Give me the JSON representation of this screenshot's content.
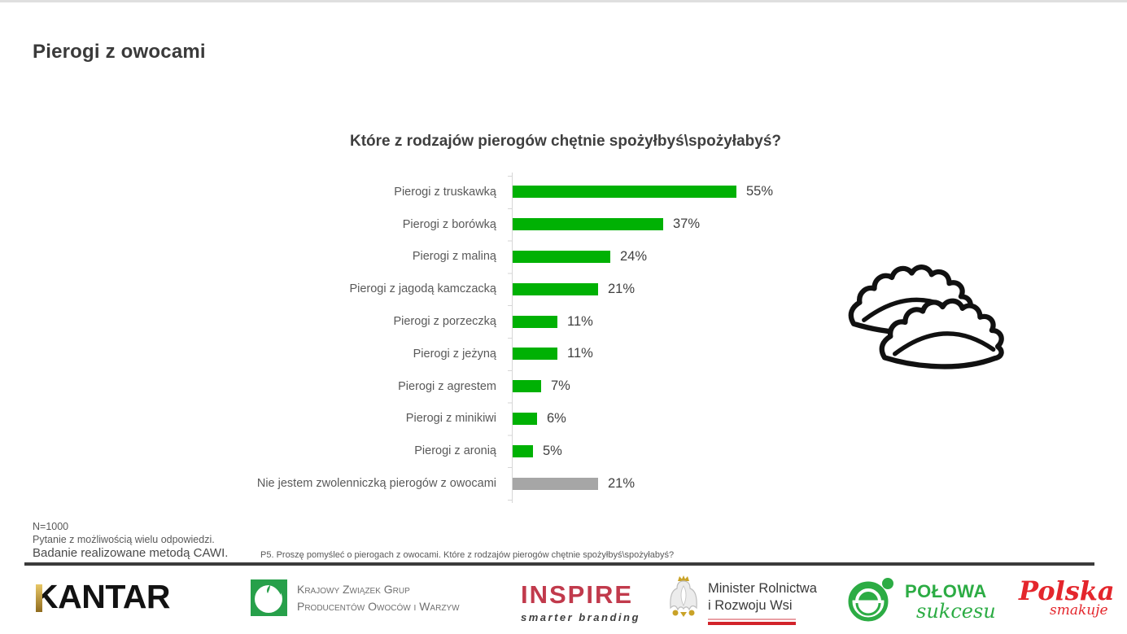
{
  "slide": {
    "title": "Pierogi z owocami"
  },
  "chart_data": {
    "type": "bar",
    "orientation": "horizontal",
    "title": "Które z rodzajów pierogów chętnie spożyłbyś\\spożyłabyś?",
    "categories": [
      "Pierogi z truskawką",
      "Pierogi z borówką",
      "Pierogi z maliną",
      "Pierogi z jagodą kamczacką",
      "Pierogi z porzeczką",
      "Pierogi z jeżyną",
      "Pierogi z agrestem",
      "Pierogi z minikiwi",
      "Pierogi z aronią",
      "Nie jestem zwolenniczką pierogów z owocami"
    ],
    "values": [
      55,
      37,
      24,
      21,
      11,
      11,
      7,
      6,
      5,
      21
    ],
    "value_suffix": "%",
    "bar_color": "#00B104",
    "muted_bar_color": "#A6A6A6",
    "muted_indices": [
      9
    ],
    "xlim": [
      0,
      60
    ],
    "grid": false,
    "legend": "none"
  },
  "notes": {
    "sample": "N=1000",
    "multi": "Pytanie z możliwością wielu odpowiedzi.",
    "method": "Badanie realizowane metodą CAWI.",
    "question": "P5. Proszę pomyśleć o pierogach z owocami. Które z rodzajów pierogów chętnie spożyłbyś\\spożyłabyś?"
  },
  "footer": {
    "kantar": {
      "name": "KANTAR"
    },
    "kzgpow": {
      "line1": "Krajowy Związek Grup",
      "line2": "Producentów Owoców i Warzyw"
    },
    "inspire": {
      "name": "INSPIRE",
      "tagline": "smarter branding"
    },
    "minister": {
      "line1": "Minister Rolnictwa",
      "line2": "i Rozwoju Wsi"
    },
    "polowa": {
      "line1": "POŁOWA",
      "line2": "sukcesu"
    },
    "polska": {
      "line1": "Polska",
      "line2": "smakuje"
    }
  },
  "colors": {
    "bar_green": "#00B104",
    "bar_grey": "#A6A6A6",
    "kzg_green": "#27A04A",
    "polowa_green": "#2CAC44",
    "inspire_red": "#C13A4C",
    "polska_red": "#E4262C",
    "flag_red": "#D2232A",
    "gold": "#C9A227"
  }
}
